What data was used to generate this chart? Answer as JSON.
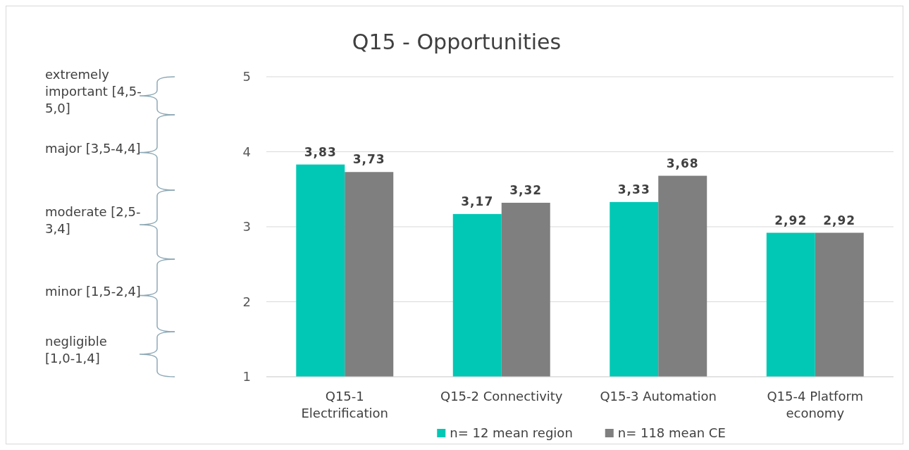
{
  "chart_data": {
    "type": "bar",
    "title": "Q15 - Opportunities",
    "categories": [
      "Q15-1 Electrification",
      "Q15-2 Connectivity",
      "Q15-3 Automation",
      "Q15-4 Platform economy"
    ],
    "series": [
      {
        "name": "n= 12 mean region",
        "color": "#00c8b4",
        "values": [
          3.83,
          3.17,
          3.33,
          2.92
        ],
        "value_labels": [
          "3,83",
          "3,17",
          "3,33",
          "2,92"
        ]
      },
      {
        "name": "n= 118 mean CE",
        "color": "#7f7f7f",
        "values": [
          3.73,
          3.32,
          3.68,
          2.92
        ],
        "value_labels": [
          "3,73",
          "3,32",
          "3,68",
          "2,92"
        ]
      }
    ],
    "ylim": [
      1,
      5
    ],
    "yticks": [
      1,
      2,
      3,
      4,
      5
    ],
    "grid": "y",
    "legend": "bottom",
    "annotations": [
      "extremely important [4,5-5,0]",
      "major [3,5-4,4]",
      "moderate [2,5-3,4]",
      "minor [1,5-2,4]",
      "negligible [1,0-1,4]"
    ]
  }
}
